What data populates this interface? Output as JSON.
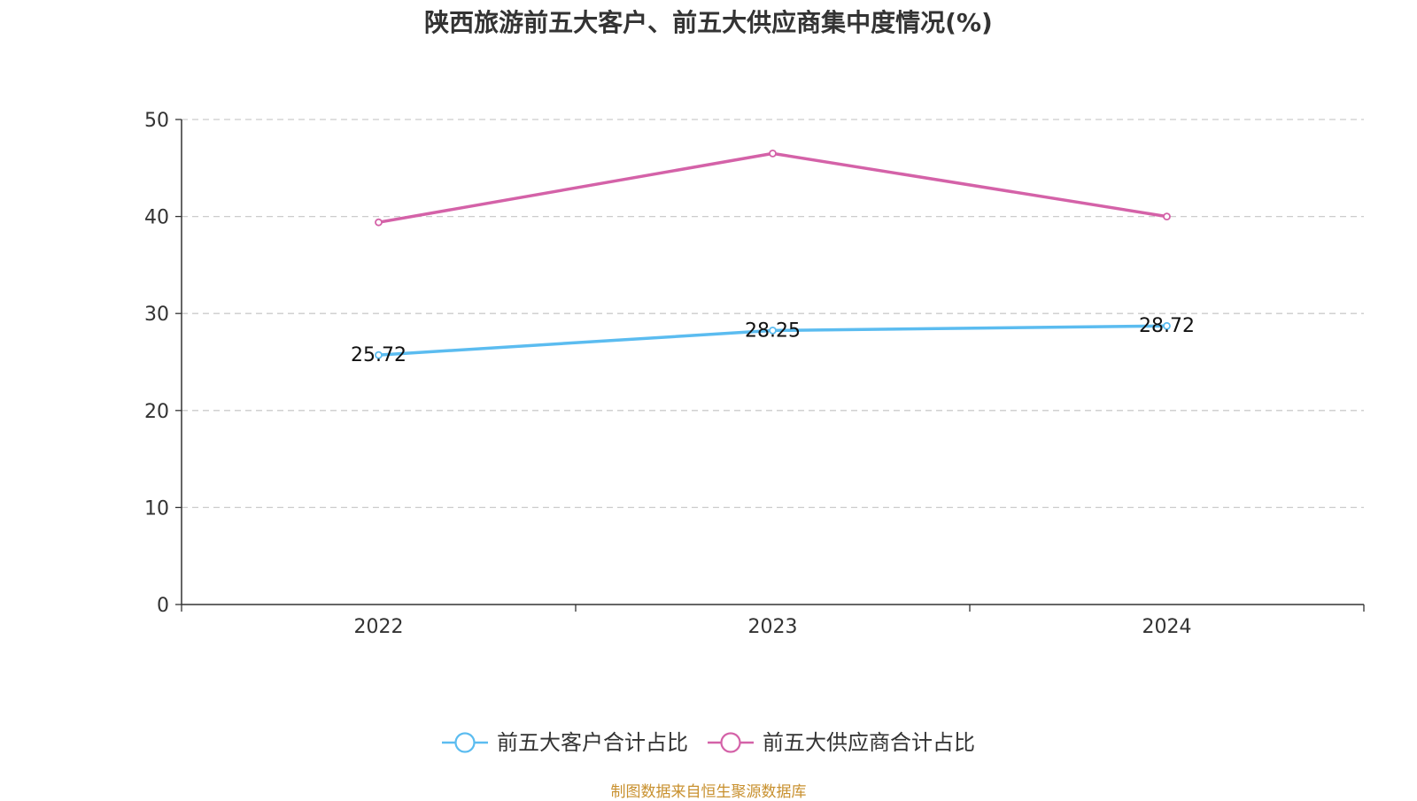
{
  "chart_data": {
    "type": "line",
    "title": "陕西旅游前五大客户、前五大供应商集中度情况(%)",
    "categories": [
      "2022",
      "2023",
      "2024"
    ],
    "ylim": [
      0,
      50
    ],
    "yticks": [
      0,
      10,
      20,
      30,
      40,
      50
    ],
    "grid": true,
    "legend_position": "bottom",
    "series": [
      {
        "name": "前五大客户合计占比",
        "values": [
          25.72,
          28.25,
          28.72
        ],
        "color": "#5bbcf0",
        "show_labels": true,
        "labels": [
          "25.72",
          "28.25",
          "28.72"
        ]
      },
      {
        "name": "前五大供应商合计占比",
        "values": [
          39.4,
          46.5,
          40.0
        ],
        "color": "#d462a8",
        "show_labels": false
      }
    ],
    "source_note": "制图数据来自恒生聚源数据库"
  }
}
